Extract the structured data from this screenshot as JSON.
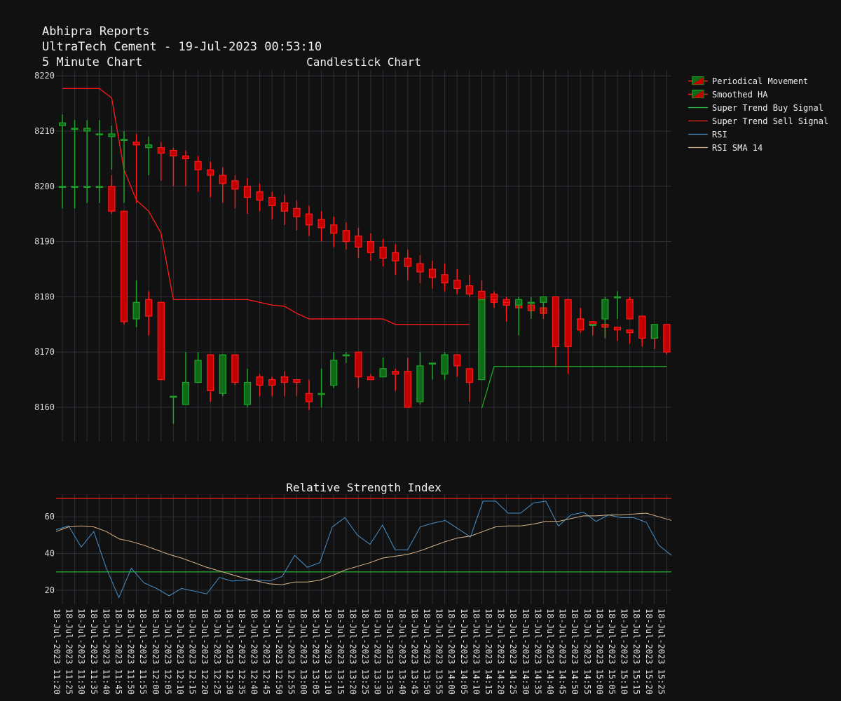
{
  "header": {
    "line1": "Abhipra Reports",
    "line2": "UltraTech Cement - 19-Jul-2023 00:53:10",
    "line3": "5 Minute Chart"
  },
  "titles": {
    "candle": "Candlestick Chart",
    "rsi": "Relative Strength Index"
  },
  "legend": [
    {
      "label": "Periodical Movement",
      "kind": "candle"
    },
    {
      "label": "Smoothed HA",
      "kind": "candle"
    },
    {
      "label": "Super Trend Buy Signal",
      "kind": "line",
      "color": "#2ecc40"
    },
    {
      "label": "Super Trend Sell Signal",
      "kind": "line",
      "color": "#ff2020"
    },
    {
      "label": "RSI",
      "kind": "line",
      "color": "#4a90c8"
    },
    {
      "label": "RSI SMA 14",
      "kind": "line",
      "color": "#d9b48a"
    }
  ],
  "chart_data": [
    {
      "type": "candlestick",
      "title": "Candlestick Chart",
      "ylim": [
        8154,
        8222
      ],
      "yticks": [
        8160,
        8170,
        8180,
        8190,
        8200,
        8210,
        8220
      ],
      "x": [
        "18-Jul-2023 11:20",
        "18-Jul-2023 11:25",
        "18-Jul-2023 11:30",
        "18-Jul-2023 11:35",
        "18-Jul-2023 11:40",
        "18-Jul-2023 11:45",
        "18-Jul-2023 11:50",
        "18-Jul-2023 11:55",
        "18-Jul-2023 12:00",
        "18-Jul-2023 12:05",
        "18-Jul-2023 12:10",
        "18-Jul-2023 12:15",
        "18-Jul-2023 12:20",
        "18-Jul-2023 12:25",
        "18-Jul-2023 12:30",
        "18-Jul-2023 12:35",
        "18-Jul-2023 12:40",
        "18-Jul-2023 12:45",
        "18-Jul-2023 12:50",
        "18-Jul-2023 12:55",
        "18-Jul-2023 13:00",
        "18-Jul-2023 13:05",
        "18-Jul-2023 13:10",
        "18-Jul-2023 13:15",
        "18-Jul-2023 13:20",
        "18-Jul-2023 13:25",
        "18-Jul-2023 13:30",
        "18-Jul-2023 13:35",
        "18-Jul-2023 13:40",
        "18-Jul-2023 13:45",
        "18-Jul-2023 13:50",
        "18-Jul-2023 13:55",
        "18-Jul-2023 14:00",
        "18-Jul-2023 14:05",
        "18-Jul-2023 14:10",
        "18-Jul-2023 14:15",
        "18-Jul-2023 14:20",
        "18-Jul-2023 14:25",
        "18-Jul-2023 14:30",
        "18-Jul-2023 14:35",
        "18-Jul-2023 14:40",
        "18-Jul-2023 14:45",
        "18-Jul-2023 14:50",
        "18-Jul-2023 14:55",
        "18-Jul-2023 15:00",
        "18-Jul-2023 15:05",
        "18-Jul-2023 15:10",
        "18-Jul-2023 15:15",
        "18-Jul-2023 15:20",
        "18-Jul-2023 15:25"
      ],
      "periodical": [
        [
          8200,
          8200,
          8200,
          8200
        ],
        [
          8200,
          8200,
          8200,
          8200
        ],
        [
          8200,
          8200,
          8200,
          8200
        ],
        [
          8200,
          8200,
          8200,
          8200
        ],
        [
          8200,
          8202,
          8195,
          8195.5
        ],
        [
          8195.5,
          8195.5,
          8175,
          8175.5
        ],
        [
          8176,
          8183,
          8174.5,
          8179
        ],
        [
          8179.5,
          8181,
          8173,
          8176.5
        ],
        [
          8179,
          8179,
          8165,
          8165
        ],
        [
          8162,
          8162,
          8157,
          8162
        ],
        [
          8160.5,
          8170,
          8160.5,
          8164.5
        ],
        [
          8164.5,
          8170,
          8164.5,
          8168.5
        ],
        [
          8169.5,
          8169.5,
          8161,
          8163
        ],
        [
          8162.5,
          8169.5,
          8162,
          8169.5
        ],
        [
          8169.5,
          8169.5,
          8164,
          8164.5
        ],
        [
          8160.5,
          8167,
          8160,
          8164.5
        ],
        [
          8165.5,
          8166,
          8162,
          8164
        ],
        [
          8165,
          8165.5,
          8162,
          8164
        ],
        [
          8165.5,
          8166.5,
          8162,
          8164.5
        ],
        [
          8165,
          8165,
          8162,
          8164.5
        ],
        [
          8162.5,
          8165,
          8159.5,
          8161
        ],
        [
          8162.5,
          8167,
          8160,
          8162.5
        ],
        [
          8164,
          8170,
          8163.5,
          8168.5
        ],
        [
          8169.5,
          8170,
          8168,
          8169.5
        ],
        [
          8170,
          8170,
          8163.5,
          8165.5
        ],
        [
          8165.5,
          8166,
          8165,
          8165
        ],
        [
          8165.5,
          8169,
          8165.5,
          8167
        ],
        [
          8166.5,
          8167,
          8163,
          8166
        ],
        [
          8166.5,
          8169,
          8160,
          8160
        ],
        [
          8161,
          8170,
          8160.5,
          8167.5
        ],
        [
          8168,
          8168,
          8165,
          8168
        ],
        [
          8166,
          8170,
          8165,
          8169.5
        ],
        [
          8169.5,
          8169.5,
          8165.5,
          8167.5
        ],
        [
          8167,
          8167,
          8161,
          8164.5
        ],
        [
          8165,
          8179.5,
          8165,
          8179.5
        ],
        [
          8180,
          8180,
          8178.5,
          8179.5
        ],
        [
          8179,
          8179,
          8175.5,
          8178.5
        ],
        [
          8178.5,
          8180,
          8173,
          8179.5
        ],
        [
          8179,
          8180,
          8176,
          8179
        ],
        [
          8179,
          8180,
          8177,
          8180
        ],
        [
          8180,
          8180,
          8167.5,
          8171
        ],
        [
          8179.5,
          8179.5,
          8166,
          8171
        ],
        [
          8176,
          8178,
          8174,
          8174
        ],
        [
          8175,
          8175,
          8175,
          8175
        ],
        [
          8176,
          8180,
          8172.5,
          8179.5
        ],
        [
          8180,
          8181,
          8176,
          8180
        ],
        [
          8179.5,
          8180,
          8177,
          8176
        ],
        [
          8176.5,
          8176.5,
          8172,
          8172.5
        ],
        [
          8172.5,
          8175,
          8172.5,
          8175
        ],
        [
          8175,
          8175,
          8169.5,
          8170
        ]
      ],
      "smoothed_ha": [
        [
          8211,
          8213,
          8196,
          8211.5
        ],
        [
          8210.5,
          8212,
          8196,
          8210.5
        ],
        [
          8210,
          8212,
          8197,
          8210.5
        ],
        [
          8209.5,
          8212,
          8197,
          8209.5
        ],
        [
          8209,
          8211,
          8203,
          8209.5
        ],
        [
          8208.5,
          8210,
          8197,
          8208.5
        ],
        [
          8208,
          8209.5,
          8197,
          8207.5
        ],
        [
          8207,
          8209,
          8202,
          8207.5
        ],
        [
          8207,
          8208,
          8201,
          8206
        ],
        [
          8206.5,
          8207,
          8200,
          8205.5
        ],
        [
          8205.5,
          8206.5,
          8200,
          8205
        ],
        [
          8204.5,
          8205.5,
          8199,
          8203
        ],
        [
          8203,
          8204.5,
          8198,
          8202
        ],
        [
          8202,
          8203.5,
          8197,
          8200.5
        ],
        [
          8201,
          8202,
          8196,
          8199.5
        ],
        [
          8200,
          8201.5,
          8195,
          8198
        ],
        [
          8199,
          8200.5,
          8195.5,
          8197.5
        ],
        [
          8198,
          8199,
          8194,
          8196.5
        ],
        [
          8197,
          8198.5,
          8193,
          8195.5
        ],
        [
          8196,
          8197.5,
          8192,
          8194.5
        ],
        [
          8195,
          8196.5,
          8191,
          8193
        ],
        [
          8194,
          8195.5,
          8190,
          8192.5
        ],
        [
          8193,
          8194.5,
          8189,
          8191.5
        ],
        [
          8192,
          8193.5,
          8188.5,
          8190
        ],
        [
          8191,
          8192.5,
          8187,
          8189
        ],
        [
          8190,
          8191.5,
          8186.5,
          8188
        ],
        [
          8189,
          8190.5,
          8185.5,
          8187
        ],
        [
          8188,
          8189.5,
          8184,
          8186.5
        ],
        [
          8187,
          8188.5,
          8183,
          8185.5
        ],
        [
          8186,
          8187.5,
          8182.5,
          8184.5
        ],
        [
          8185,
          8186.5,
          8181.5,
          8183.5
        ],
        [
          8184,
          8186,
          8181,
          8182.5
        ],
        [
          8183,
          8185,
          8180.5,
          8181.5
        ],
        [
          8182,
          8184,
          8180,
          8180.5
        ],
        [
          8181,
          8183,
          8179.5,
          8179.5
        ],
        [
          8180.5,
          8181,
          8178,
          8179
        ],
        [
          8179.5,
          8180,
          8177.5,
          8178.5
        ],
        [
          8179,
          8179,
          8177,
          8178
        ],
        [
          8178.5,
          8178.5,
          8176,
          8177.5
        ],
        [
          8178,
          8178,
          8176,
          8177
        ],
        [
          8177.5,
          8177.5,
          8175,
          8176.5
        ],
        [
          8176.5,
          8176.5,
          8174,
          8176
        ],
        [
          8176,
          8176,
          8173.5,
          8175.5
        ],
        [
          8175.5,
          8175.5,
          8173,
          8175
        ],
        [
          8175,
          8175,
          8172.5,
          8174.5
        ],
        [
          8174.5,
          8174.5,
          8172,
          8174
        ],
        [
          8174,
          8174,
          8171.5,
          8173.5
        ],
        [
          8173.5,
          8173.5,
          8171,
          8173
        ],
        [
          8173,
          8173,
          8170.5,
          8172.5
        ],
        [
          8172.5,
          8172.5,
          8170,
          8172
        ]
      ],
      "super_trend_sell": [
        8217.7,
        8217.7,
        8217.7,
        8217.7,
        8216,
        8203,
        8197.5,
        8195.5,
        8191.5,
        8179.5,
        8179.5,
        8179.5,
        8179.5,
        8179.5,
        8179.5,
        8179.5,
        8179,
        8178.5,
        8178.3,
        8177,
        8176,
        8176,
        8176,
        8176,
        8176,
        8176,
        8176,
        8175,
        8175,
        8175,
        8175,
        8175,
        8175,
        8175,
        null,
        null,
        null,
        null,
        null,
        null,
        null,
        null,
        null,
        null,
        null,
        null,
        null,
        null,
        null,
        null
      ],
      "super_trend_buy": [
        null,
        null,
        null,
        null,
        null,
        null,
        null,
        null,
        null,
        null,
        null,
        null,
        null,
        null,
        null,
        null,
        null,
        null,
        null,
        null,
        null,
        null,
        null,
        null,
        null,
        null,
        null,
        null,
        null,
        null,
        null,
        null,
        null,
        null,
        8159.8,
        8167.4,
        8167.4,
        8167.4,
        8167.4,
        8167.4,
        8167.4,
        8167.4,
        8167.4,
        8167.4,
        8167.4,
        8167.4,
        8167.4,
        8167.4,
        8167.4,
        8167.4
      ]
    },
    {
      "type": "line",
      "title": "Relative Strength Index",
      "ylim": [
        13,
        72
      ],
      "yticks": [
        20,
        40,
        60
      ],
      "overbought": 70,
      "oversold": 30,
      "series": [
        {
          "name": "RSI",
          "color": "#4a90c8",
          "values": [
            53,
            55,
            43.5,
            52,
            32,
            16,
            32,
            24,
            21,
            17,
            21,
            19.5,
            18,
            27,
            25,
            25.5,
            25.5,
            25,
            27.5,
            39,
            32.5,
            35,
            54.5,
            59.5,
            50,
            45,
            55.5,
            42,
            42,
            54.5,
            56.5,
            58,
            53.5,
            49,
            68.5,
            68.5,
            62,
            62,
            67.5,
            68.5,
            55,
            61,
            62.5,
            57.5,
            61,
            59.5,
            59.5,
            57,
            44.5,
            39
          ]
        },
        {
          "name": "RSI SMA 14",
          "color": "#d9b48a",
          "values": [
            52,
            54.5,
            55,
            54.5,
            52,
            48,
            46.5,
            44.5,
            42,
            39.5,
            37.5,
            35,
            32.5,
            30.5,
            28.5,
            26.5,
            25,
            23.5,
            23,
            24.5,
            24.5,
            25.5,
            28,
            31,
            33,
            35,
            37.5,
            38.5,
            39.5,
            41.5,
            44,
            46.5,
            48.5,
            49.5,
            52,
            54.5,
            55,
            55,
            56,
            57.5,
            57.5,
            59,
            60.5,
            60.5,
            61,
            61,
            61.5,
            62,
            60,
            58
          ]
        }
      ]
    }
  ]
}
